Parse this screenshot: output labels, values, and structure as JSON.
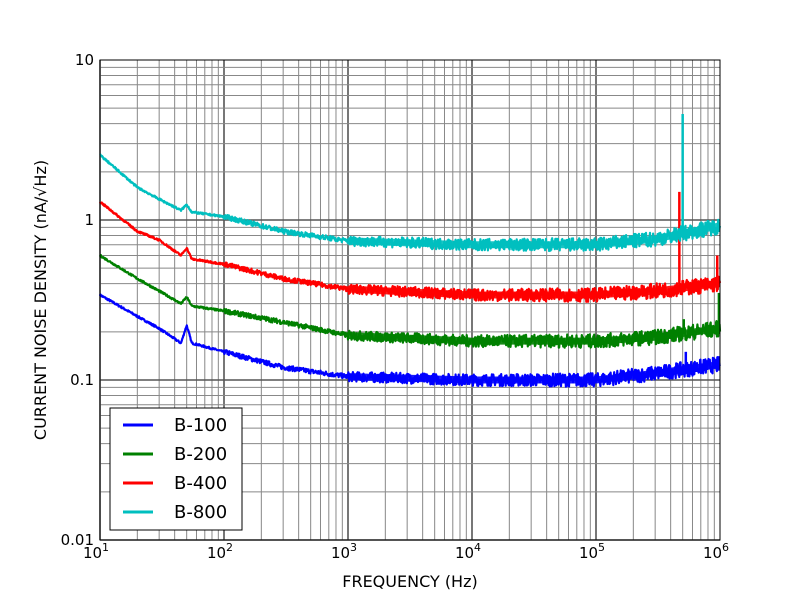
{
  "chart_data": {
    "type": "line",
    "title": "",
    "xlabel": "FREQUENCY (Hz)",
    "ylabel": "CURRENT NOISE DENSITY (nA/√Hz)",
    "xscale": "log",
    "yscale": "log",
    "xlim": [
      10,
      1000000
    ],
    "ylim": [
      0.01,
      10
    ],
    "grid": true,
    "legend_placement": "lower-left",
    "x_tick_labels": [
      {
        "base": "10",
        "exp": "1"
      },
      {
        "base": "10",
        "exp": "2"
      },
      {
        "base": "10",
        "exp": "3"
      },
      {
        "base": "10",
        "exp": "4"
      },
      {
        "base": "10",
        "exp": "5"
      },
      {
        "base": "10",
        "exp": "6"
      }
    ],
    "x_ticks": [
      10,
      100,
      1000,
      10000,
      100000,
      1000000
    ],
    "y_ticks": [
      0.01,
      0.1,
      1,
      10
    ],
    "y_tick_labels": [
      "0.01",
      "0.1",
      "1",
      "10"
    ],
    "series": [
      {
        "name": "B-100",
        "color": "#0000ff",
        "x": [
          10,
          20,
          30,
          45,
          50,
          55,
          100,
          300,
          1000,
          10000,
          100000,
          300000,
          1000000
        ],
        "y": [
          0.34,
          0.25,
          0.21,
          0.17,
          0.22,
          0.17,
          0.15,
          0.12,
          0.105,
          0.1,
          0.1,
          0.11,
          0.125
        ],
        "spikes": [
          {
            "x": 530000,
            "y": 0.15
          }
        ]
      },
      {
        "name": "B-200",
        "color": "#008000",
        "x": [
          10,
          20,
          30,
          45,
          50,
          55,
          100,
          300,
          1000,
          10000,
          100000,
          300000,
          1000000
        ],
        "y": [
          0.6,
          0.43,
          0.36,
          0.3,
          0.33,
          0.29,
          0.27,
          0.23,
          0.19,
          0.175,
          0.175,
          0.185,
          0.21
        ],
        "spikes": [
          {
            "x": 510000,
            "y": 0.24
          },
          {
            "x": 980000,
            "y": 0.35
          }
        ]
      },
      {
        "name": "B-400",
        "color": "#ff0000",
        "x": [
          10,
          20,
          30,
          45,
          50,
          55,
          100,
          300,
          1000,
          10000,
          100000,
          300000,
          1000000
        ],
        "y": [
          1.3,
          0.85,
          0.75,
          0.6,
          0.67,
          0.57,
          0.53,
          0.43,
          0.37,
          0.34,
          0.34,
          0.36,
          0.4
        ],
        "spikes": [
          {
            "x": 470000,
            "y": 1.5
          },
          {
            "x": 950000,
            "y": 0.6
          }
        ]
      },
      {
        "name": "B-800",
        "color": "#00bfbf",
        "x": [
          10,
          20,
          30,
          45,
          50,
          55,
          100,
          300,
          1000,
          10000,
          100000,
          300000,
          1000000
        ],
        "y": [
          2.55,
          1.6,
          1.35,
          1.15,
          1.25,
          1.12,
          1.05,
          0.85,
          0.74,
          0.7,
          0.7,
          0.76,
          0.92
        ],
        "spikes": [
          {
            "x": 500000,
            "y": 4.6
          }
        ]
      }
    ]
  }
}
